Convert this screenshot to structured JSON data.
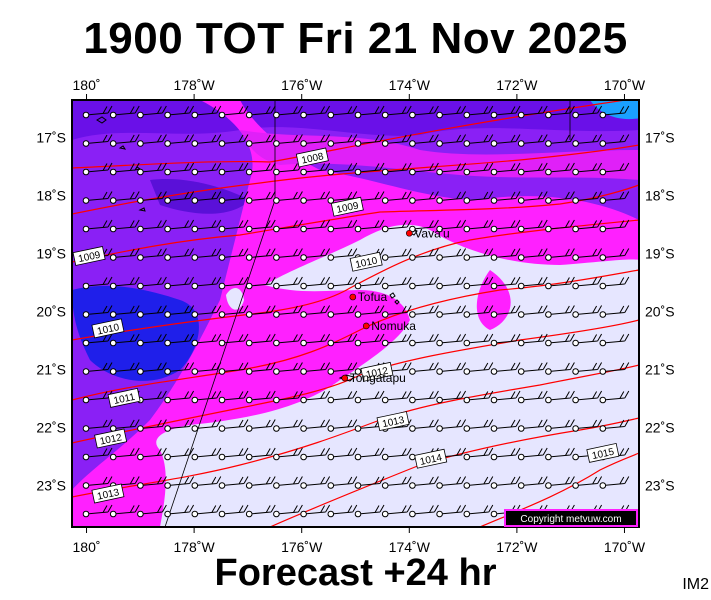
{
  "title": "1900 TOT Fri 21 Nov 2025",
  "footer": "Forecast +24 hr",
  "corner_label": "IM2",
  "copyright": "Copyright metvuw.com",
  "lon_ticks": [
    "180˚",
    "178˚W",
    "176˚W",
    "174˚W",
    "172˚W",
    "170˚W"
  ],
  "lat_ticks": [
    "17˚S",
    "18˚S",
    "19˚S",
    "20˚S",
    "21˚S",
    "22˚S",
    "23˚S"
  ],
  "places": [
    {
      "name": "Vava'u",
      "lon": -174.0,
      "lat": -18.65
    },
    {
      "name": "Tofua",
      "lon": -175.05,
      "lat": -19.75
    },
    {
      "name": "Nomuka",
      "lon": -174.8,
      "lat": -20.25
    },
    {
      "name": "Tongatapu",
      "lon": -175.2,
      "lat": -21.15
    }
  ],
  "isobars": [
    {
      "label": "1008",
      "lon": -175.8,
      "lat": -17.35
    },
    {
      "label": "1009",
      "lon": -175.15,
      "lat": -18.2
    },
    {
      "label": "1009",
      "lon": -179.95,
      "lat": -19.05
    },
    {
      "label": "1010",
      "lon": -174.8,
      "lat": -19.15
    },
    {
      "label": "1010",
      "lon": -179.6,
      "lat": -20.3
    },
    {
      "label": "1011",
      "lon": -179.3,
      "lat": -21.5
    },
    {
      "label": "1012",
      "lon": -174.6,
      "lat": -21.05
    },
    {
      "label": "1012",
      "lon": -179.55,
      "lat": -22.2
    },
    {
      "label": "1013",
      "lon": -174.3,
      "lat": -21.9
    },
    {
      "label": "1013",
      "lon": -179.6,
      "lat": -23.15
    },
    {
      "label": "1014",
      "lon": -173.6,
      "lat": -22.55
    },
    {
      "label": "1015",
      "lon": -170.4,
      "lat": -22.45
    }
  ],
  "colors": {
    "dark_blue": "#1a1ae6",
    "violet": "#7a1aff",
    "purple": "#a020f0",
    "magenta": "#ff1aff",
    "light": "#e6e6ff",
    "cyan": "#18d0ff",
    "isobar": "#ff0000"
  }
}
